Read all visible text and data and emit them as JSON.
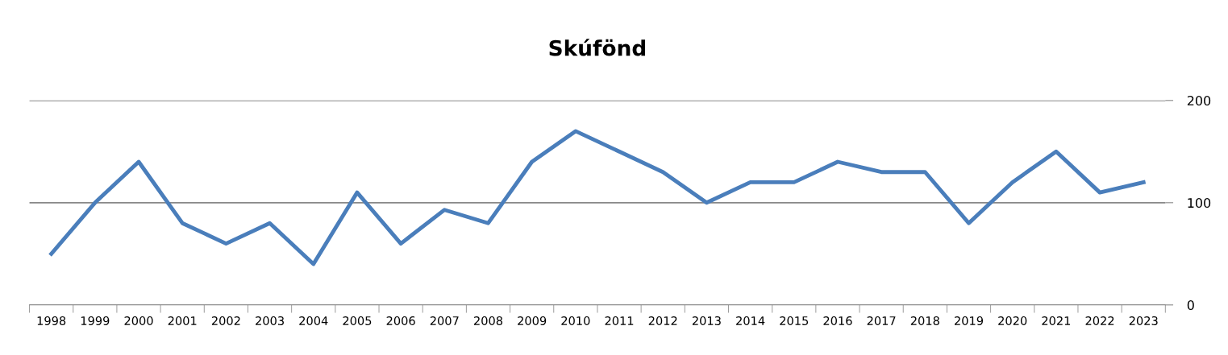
{
  "chart_data": {
    "type": "line",
    "title": "Skúfönd",
    "categories": [
      "1998",
      "1999",
      "2000",
      "2001",
      "2002",
      "2003",
      "2004",
      "2005",
      "2006",
      "2007",
      "2008",
      "2009",
      "2010",
      "2011",
      "2012",
      "2013",
      "2014",
      "2015",
      "2016",
      "2017",
      "2018",
      "2019",
      "2020",
      "2021",
      "2022",
      "2023"
    ],
    "series": [
      {
        "color": "#4a7ebb",
        "values": [
          50,
          100,
          140,
          80,
          60,
          80,
          40,
          110,
          60,
          93,
          80,
          140,
          170,
          150,
          130,
          100,
          120,
          120,
          140,
          130,
          130,
          80,
          120,
          150,
          110,
          120
        ]
      }
    ],
    "ylim": [
      0,
      200
    ],
    "yticks": [
      0,
      100,
      200
    ],
    "grid": "y",
    "legend": false,
    "marker": "none",
    "line_style": "solid"
  }
}
